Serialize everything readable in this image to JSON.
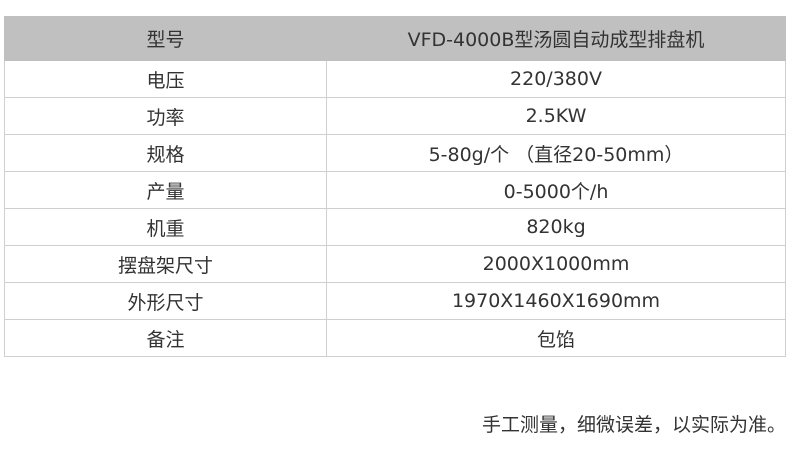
{
  "table": {
    "header": {
      "key": "型号",
      "value": "VFD-4000B型汤圆自动成型排盘机"
    },
    "rows": [
      {
        "key": "电压",
        "value": "220/380V"
      },
      {
        "key": "功率",
        "value": "2.5KW"
      },
      {
        "key": "规格",
        "value": "5-80g/个 （直径20-50mm）"
      },
      {
        "key": "产量",
        "value": "0-5000个/h"
      },
      {
        "key": "机重",
        "value": "820kg"
      },
      {
        "key": "摆盘架尺寸",
        "value": "2000X1000mm"
      },
      {
        "key": "外形尺寸",
        "value": "1970X1460X1690mm"
      },
      {
        "key": "备注",
        "value": "包馅"
      }
    ]
  },
  "note": "手工测量，细微误差，以实际为准。",
  "colors": {
    "header_bg": "#c0c0c0",
    "border": "#cfcfcf",
    "text": "#333333"
  }
}
